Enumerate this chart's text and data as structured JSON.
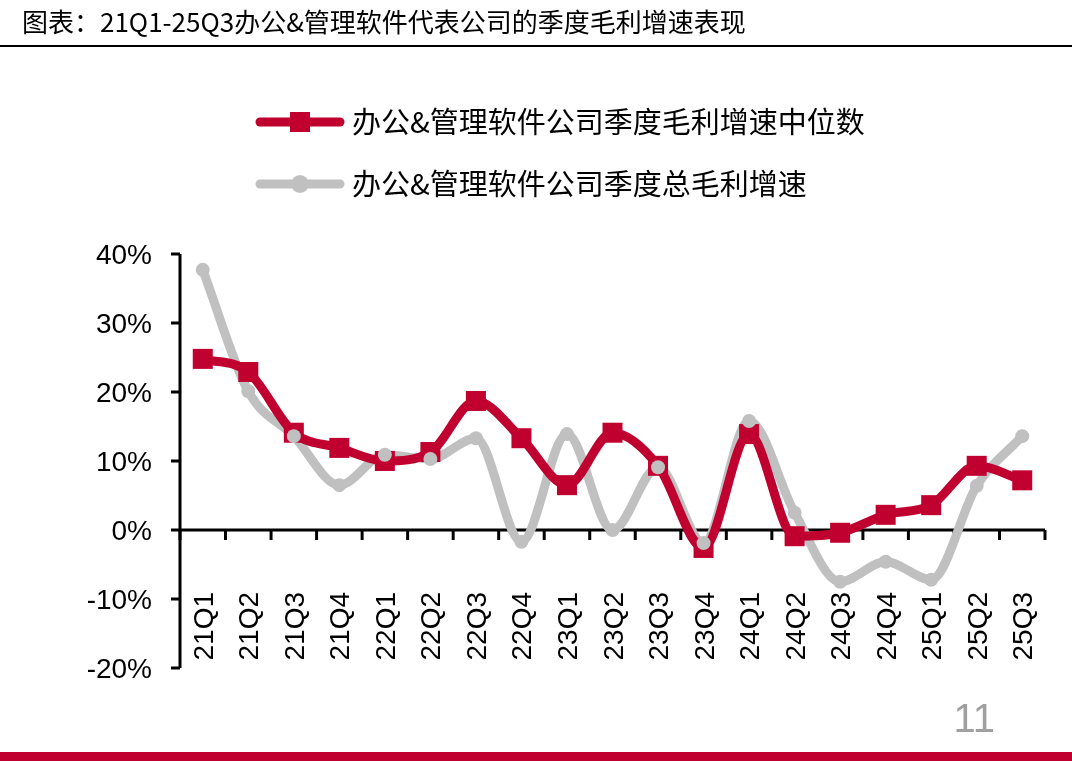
{
  "chart_data": {
    "type": "line",
    "title": "图表：21Q1-25Q3办公&管理软件代表公司的季度毛利增速表现",
    "categories": [
      "21Q1",
      "21Q2",
      "21Q3",
      "21Q4",
      "22Q1",
      "22Q2",
      "22Q3",
      "22Q4",
      "23Q1",
      "23Q2",
      "23Q3",
      "23Q4",
      "24Q1",
      "24Q2",
      "24Q3",
      "24Q4",
      "25Q1",
      "25Q2",
      "25Q3"
    ],
    "series": [
      {
        "name": "办公&管理软件公司季度毛利增速中位数",
        "color": "#c0002f",
        "marker": "square",
        "values": [
          24.8,
          22.9,
          14.1,
          11.9,
          10.0,
          11.3,
          18.7,
          13.3,
          6.5,
          14.1,
          9.3,
          -2.6,
          13.9,
          -0.9,
          -0.4,
          2.2,
          3.6,
          9.3,
          7.2
        ]
      },
      {
        "name": "办公&管理软件公司季度总毛利增速",
        "color": "#c0c0c0",
        "marker": "circle",
        "values": [
          37.7,
          20.1,
          13.6,
          6.5,
          10.9,
          10.3,
          13.3,
          -1.7,
          13.9,
          0,
          9.1,
          -1.9,
          15.8,
          2.5,
          -7.5,
          -4.6,
          -7.2,
          6.4,
          13.6
        ]
      }
    ],
    "ylim": [
      -20,
      40
    ],
    "yticks": [
      {
        "value": -20,
        "label": "-20%"
      },
      {
        "value": -10,
        "label": "-10%"
      },
      {
        "value": 0,
        "label": "0%"
      },
      {
        "value": 10,
        "label": "10%"
      },
      {
        "value": 20,
        "label": "20%"
      },
      {
        "value": 30,
        "label": "30%"
      },
      {
        "value": 40,
        "label": "40%"
      }
    ],
    "grid": false,
    "legend": "top",
    "line_style": "solid",
    "annotations": [
      "11"
    ]
  }
}
